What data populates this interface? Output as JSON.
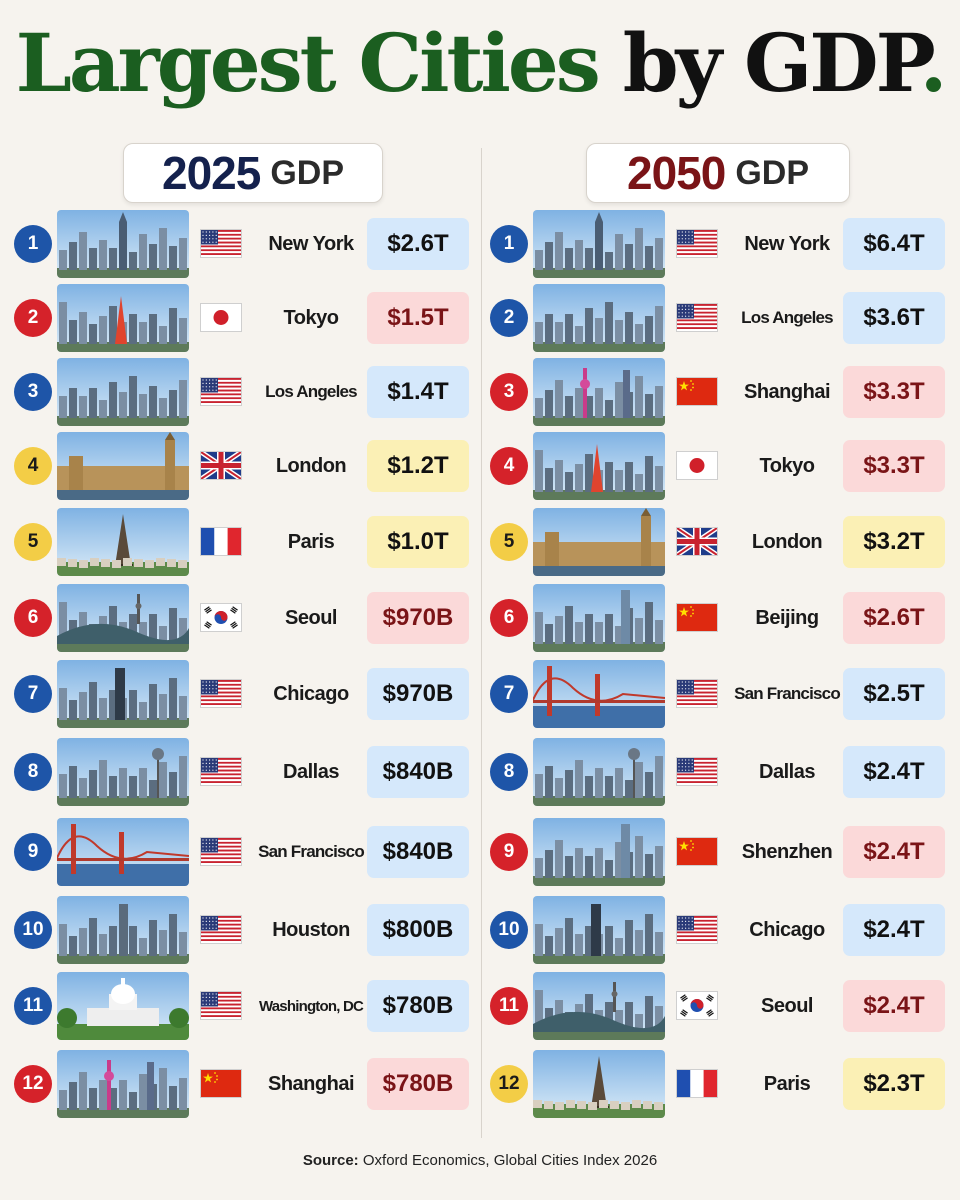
{
  "title": {
    "part1": "Largest Cities",
    "part2": "by GDP",
    "part3": "."
  },
  "columns": {
    "left": {
      "year": "2025",
      "label": "GDP"
    },
    "right": {
      "year": "2050",
      "label": "GDP"
    }
  },
  "colors": {
    "blue": "#1e55a8",
    "red": "#d5222a",
    "yellow": "#f3cd46",
    "title_green": "#1b5e20"
  },
  "rows_2025": [
    {
      "rank": "1",
      "city": "New York",
      "flag": "us",
      "value": "$2.6T",
      "color": "blue"
    },
    {
      "rank": "2",
      "city": "Tokyo",
      "flag": "jp",
      "value": "$1.5T",
      "color": "red"
    },
    {
      "rank": "3",
      "city": "Los Angeles",
      "flag": "us",
      "value": "$1.4T",
      "color": "blue"
    },
    {
      "rank": "4",
      "city": "London",
      "flag": "uk",
      "value": "$1.2T",
      "color": "yellow"
    },
    {
      "rank": "5",
      "city": "Paris",
      "flag": "fr",
      "value": "$1.0T",
      "color": "yellow"
    },
    {
      "rank": "6",
      "city": "Seoul",
      "flag": "kr",
      "value": "$970B",
      "color": "red"
    },
    {
      "rank": "7",
      "city": "Chicago",
      "flag": "us",
      "value": "$970B",
      "color": "blue"
    },
    {
      "rank": "8",
      "city": "Dallas",
      "flag": "us",
      "value": "$840B",
      "color": "blue"
    },
    {
      "rank": "9",
      "city": "San Francisco",
      "flag": "us",
      "value": "$840B",
      "color": "blue"
    },
    {
      "rank": "10",
      "city": "Houston",
      "flag": "us",
      "value": "$800B",
      "color": "blue"
    },
    {
      "rank": "11",
      "city": "Washington, DC",
      "flag": "us",
      "value": "$780B",
      "color": "blue"
    },
    {
      "rank": "12",
      "city": "Shanghai",
      "flag": "cn",
      "value": "$780B",
      "color": "red"
    }
  ],
  "rows_2050": [
    {
      "rank": "1",
      "city": "New York",
      "flag": "us",
      "value": "$6.4T",
      "color": "blue"
    },
    {
      "rank": "2",
      "city": "Los Angeles",
      "flag": "us",
      "value": "$3.6T",
      "color": "blue"
    },
    {
      "rank": "3",
      "city": "Shanghai",
      "flag": "cn",
      "value": "$3.3T",
      "color": "red"
    },
    {
      "rank": "4",
      "city": "Tokyo",
      "flag": "jp",
      "value": "$3.3T",
      "color": "red"
    },
    {
      "rank": "5",
      "city": "London",
      "flag": "uk",
      "value": "$3.2T",
      "color": "yellow"
    },
    {
      "rank": "6",
      "city": "Beijing",
      "flag": "cn",
      "value": "$2.6T",
      "color": "red"
    },
    {
      "rank": "7",
      "city": "San Francisco",
      "flag": "us",
      "value": "$2.5T",
      "color": "blue"
    },
    {
      "rank": "8",
      "city": "Dallas",
      "flag": "us",
      "value": "$2.4T",
      "color": "blue"
    },
    {
      "rank": "9",
      "city": "Shenzhen",
      "flag": "cn",
      "value": "$2.4T",
      "color": "red"
    },
    {
      "rank": "10",
      "city": "Chicago",
      "flag": "us",
      "value": "$2.4T",
      "color": "blue"
    },
    {
      "rank": "11",
      "city": "Seoul",
      "flag": "kr",
      "value": "$2.4T",
      "color": "red"
    },
    {
      "rank": "12",
      "city": "Paris",
      "flag": "fr",
      "value": "$2.3T",
      "color": "yellow"
    }
  ],
  "source": {
    "label": "Source:",
    "text": "Oxford Economics, Global Cities Index 2026"
  },
  "chart_data": {
    "type": "table",
    "title": "Largest Cities by GDP.",
    "columns": [
      "2025 GDP",
      "2050 GDP"
    ],
    "series": [
      {
        "name": "2025 GDP",
        "categories": [
          "New York",
          "Tokyo",
          "Los Angeles",
          "London",
          "Paris",
          "Seoul",
          "Chicago",
          "Dallas",
          "San Francisco",
          "Houston",
          "Washington, DC",
          "Shanghai"
        ],
        "values": [
          "$2.6T",
          "$1.5T",
          "$1.4T",
          "$1.2T",
          "$1.0T",
          "$970B",
          "$970B",
          "$840B",
          "$840B",
          "$800B",
          "$780B",
          "$780B"
        ]
      },
      {
        "name": "2050 GDP",
        "categories": [
          "New York",
          "Los Angeles",
          "Shanghai",
          "Tokyo",
          "London",
          "Beijing",
          "San Francisco",
          "Dallas",
          "Shenzhen",
          "Chicago",
          "Seoul",
          "Paris"
        ],
        "values": [
          "$6.4T",
          "$3.6T",
          "$3.3T",
          "$3.3T",
          "$3.2T",
          "$2.6T",
          "$2.5T",
          "$2.4T",
          "$2.4T",
          "$2.4T",
          "$2.4T",
          "$2.3T"
        ]
      }
    ]
  }
}
